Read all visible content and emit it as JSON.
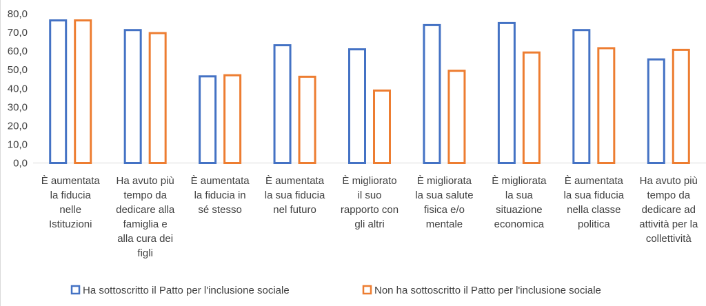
{
  "chart_data": {
    "type": "bar",
    "title": "",
    "xlabel": "",
    "ylabel": "",
    "ylim": [
      0,
      80
    ],
    "y_ticks": [
      "0,0",
      "10,0",
      "20,0",
      "30,0",
      "40,0",
      "50,0",
      "60,0",
      "70,0",
      "80,0"
    ],
    "grid": false,
    "legend_position": "bottom",
    "categories": [
      [
        "È aumentata",
        "la fiducia",
        "nelle",
        "Istituzioni"
      ],
      [
        "Ha avuto più",
        "tempo da",
        "dedicare alla",
        "famiglia e",
        "alla cura dei",
        "figli"
      ],
      [
        "È aumentata",
        "la fiducia in",
        "sé stesso"
      ],
      [
        "È aumentata",
        "la sua fiducia",
        "nel futuro"
      ],
      [
        "È migliorato",
        "il suo",
        "rapporto con",
        "gli altri"
      ],
      [
        "È migliorata",
        "la sua salute",
        "fisica e/o",
        "mentale"
      ],
      [
        "È migliorata",
        "la sua",
        "situazione",
        "economica"
      ],
      [
        "È aumentata",
        "la sua fiducia",
        "nella classe",
        "politica"
      ],
      [
        "Ha avuto più",
        "tempo da",
        "dedicare ad",
        "attività per la",
        "collettività"
      ]
    ],
    "series": [
      {
        "name": "Ha sottoscritto il Patto per l'inclusione sociale",
        "color": "#4472C4",
        "values": [
          77.0,
          71.8,
          47.0,
          63.7,
          61.5,
          74.5,
          75.6,
          71.8,
          56.1
        ]
      },
      {
        "name": "Non ha sottoscritto il Patto per l'inclusione sociale",
        "color": "#ED7D31",
        "values": [
          77.0,
          70.2,
          47.6,
          46.8,
          39.4,
          50.0,
          59.8,
          62.1,
          61.2
        ]
      }
    ]
  }
}
